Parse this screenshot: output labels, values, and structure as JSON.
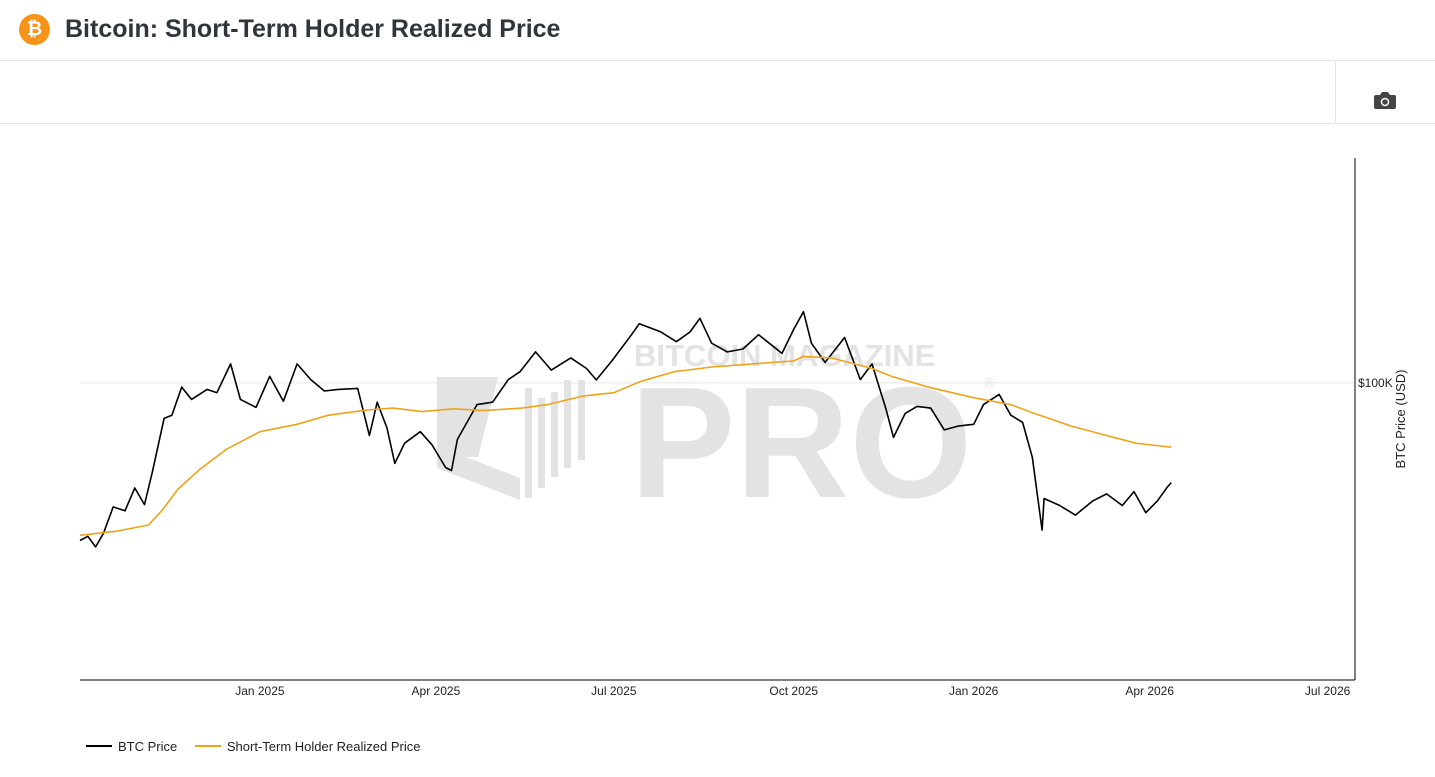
{
  "header": {
    "title": "Bitcoin: Short-Term Holder Realized Price",
    "logo_glyph": "₿"
  },
  "toolbar": {
    "camera_icon": "camera-icon"
  },
  "watermark": {
    "line1": "BITCOIN MAGAZINE",
    "line2": "PRO",
    "registered": "®"
  },
  "colors": {
    "btc_price": "#000000",
    "sth_price": "#f0a31a",
    "grid": "#e6e6e6",
    "watermark": "#e3e3e3",
    "brand": "#f7931a"
  },
  "chart_data": {
    "type": "line",
    "title": "Bitcoin: Short-Term Holder Realized Price",
    "xlabel": "",
    "ylabel": "BTC Price (USD)",
    "y_scale": "log",
    "xlim": [
      "2024-10-01",
      "2026-07-15"
    ],
    "ylim": [
      40000,
      200000
    ],
    "x_ticks": [
      "2025-01-01",
      "2025-04-01",
      "2025-07-01",
      "2025-10-01",
      "2026-01-01",
      "2026-04-01",
      "2026-07-01"
    ],
    "x_tick_labels": [
      "Jan 2025",
      "Apr 2025",
      "Jul 2025",
      "Oct 2025",
      "Jan 2026",
      "Apr 2026",
      "Jul 2026"
    ],
    "y_ticks": [
      100000
    ],
    "y_tick_labels": [
      "$100K"
    ],
    "grid": true,
    "legend_position": "bottom-left",
    "series": [
      {
        "name": "BTC Price",
        "color": "#000000",
        "points": [
          [
            "2024-10-01",
            61500
          ],
          [
            "2024-10-05",
            62300
          ],
          [
            "2024-10-09",
            60300
          ],
          [
            "2024-10-13",
            62900
          ],
          [
            "2024-10-18",
            68200
          ],
          [
            "2024-10-24",
            67400
          ],
          [
            "2024-10-29",
            72300
          ],
          [
            "2024-11-03",
            68700
          ],
          [
            "2024-11-07",
            76000
          ],
          [
            "2024-11-13",
            89600
          ],
          [
            "2024-11-17",
            90500
          ],
          [
            "2024-11-22",
            98700
          ],
          [
            "2024-11-27",
            95000
          ],
          [
            "2024-12-05",
            98000
          ],
          [
            "2024-12-10",
            97000
          ],
          [
            "2024-12-17",
            106000
          ],
          [
            "2024-12-22",
            95000
          ],
          [
            "2024-12-30",
            92700
          ],
          [
            "2025-01-06",
            102000
          ],
          [
            "2025-01-13",
            94500
          ],
          [
            "2025-01-20",
            106000
          ],
          [
            "2025-01-27",
            101000
          ],
          [
            "2025-02-03",
            97500
          ],
          [
            "2025-02-10",
            98000
          ],
          [
            "2025-02-20",
            98300
          ],
          [
            "2025-02-26",
            85000
          ],
          [
            "2025-03-02",
            94200
          ],
          [
            "2025-03-07",
            87000
          ],
          [
            "2025-03-11",
            78000
          ],
          [
            "2025-03-16",
            83000
          ],
          [
            "2025-03-24",
            86000
          ],
          [
            "2025-03-30",
            82600
          ],
          [
            "2025-04-06",
            77000
          ],
          [
            "2025-04-09",
            76300
          ],
          [
            "2025-04-12",
            84000
          ],
          [
            "2025-04-22",
            93500
          ],
          [
            "2025-04-30",
            94200
          ],
          [
            "2025-05-08",
            101000
          ],
          [
            "2025-05-14",
            103500
          ],
          [
            "2025-05-22",
            110000
          ],
          [
            "2025-05-30",
            104000
          ],
          [
            "2025-06-09",
            108000
          ],
          [
            "2025-06-17",
            104500
          ],
          [
            "2025-06-22",
            100900
          ],
          [
            "2025-06-30",
            107000
          ],
          [
            "2025-07-10",
            116000
          ],
          [
            "2025-07-14",
            120000
          ],
          [
            "2025-07-25",
            117000
          ],
          [
            "2025-08-02",
            113500
          ],
          [
            "2025-08-09",
            117000
          ],
          [
            "2025-08-14",
            122000
          ],
          [
            "2025-08-20",
            113000
          ],
          [
            "2025-08-28",
            110000
          ],
          [
            "2025-09-05",
            111000
          ],
          [
            "2025-09-13",
            116000
          ],
          [
            "2025-09-25",
            109500
          ],
          [
            "2025-10-01",
            118000
          ],
          [
            "2025-10-06",
            124500
          ],
          [
            "2025-10-10",
            113000
          ],
          [
            "2025-10-17",
            106500
          ],
          [
            "2025-10-27",
            115000
          ],
          [
            "2025-11-04",
            101000
          ],
          [
            "2025-11-10",
            106000
          ],
          [
            "2025-11-17",
            92500
          ],
          [
            "2025-11-21",
            84500
          ],
          [
            "2025-11-27",
            91000
          ],
          [
            "2025-12-03",
            93000
          ],
          [
            "2025-12-10",
            92500
          ],
          [
            "2025-12-17",
            86500
          ],
          [
            "2025-12-24",
            87500
          ],
          [
            "2026-01-01",
            88000
          ],
          [
            "2026-01-06",
            93500
          ],
          [
            "2026-01-14",
            96500
          ],
          [
            "2026-01-20",
            90500
          ],
          [
            "2026-01-26",
            88500
          ],
          [
            "2026-01-31",
            79500
          ],
          [
            "2026-02-05",
            63500
          ],
          [
            "2026-02-06",
            70000
          ],
          [
            "2026-02-14",
            68500
          ],
          [
            "2026-02-22",
            66500
          ],
          [
            "2026-03-03",
            69500
          ],
          [
            "2026-03-10",
            71000
          ],
          [
            "2026-03-18",
            68500
          ],
          [
            "2026-03-24",
            71500
          ],
          [
            "2026-03-30",
            67000
          ],
          [
            "2026-04-05",
            69500
          ],
          [
            "2026-04-10",
            72500
          ],
          [
            "2026-04-12",
            73500
          ]
        ]
      },
      {
        "name": "Short-Term Holder Realized Price",
        "color": "#f0a31a",
        "points": [
          [
            "2024-10-01",
            62500
          ],
          [
            "2024-10-20",
            63300
          ],
          [
            "2024-11-05",
            64500
          ],
          [
            "2024-11-12",
            67500
          ],
          [
            "2024-11-20",
            72000
          ],
          [
            "2024-12-01",
            76500
          ],
          [
            "2024-12-15",
            81500
          ],
          [
            "2025-01-01",
            86000
          ],
          [
            "2025-01-20",
            88000
          ],
          [
            "2025-02-05",
            90500
          ],
          [
            "2025-02-25",
            92000
          ],
          [
            "2025-03-10",
            92500
          ],
          [
            "2025-03-25",
            91500
          ],
          [
            "2025-04-10",
            92300
          ],
          [
            "2025-04-25",
            91800
          ],
          [
            "2025-05-15",
            92500
          ],
          [
            "2025-05-28",
            93500
          ],
          [
            "2025-06-15",
            96000
          ],
          [
            "2025-07-01",
            97000
          ],
          [
            "2025-07-15",
            100500
          ],
          [
            "2025-08-01",
            103500
          ],
          [
            "2025-08-20",
            105000
          ],
          [
            "2025-09-10",
            106000
          ],
          [
            "2025-10-01",
            107000
          ],
          [
            "2025-10-06",
            108500
          ],
          [
            "2025-10-20",
            108000
          ],
          [
            "2025-11-01",
            106000
          ],
          [
            "2025-11-10",
            104500
          ],
          [
            "2025-11-20",
            102000
          ],
          [
            "2025-12-10",
            98500
          ],
          [
            "2026-01-01",
            95500
          ],
          [
            "2026-01-20",
            93500
          ],
          [
            "2026-02-01",
            91000
          ],
          [
            "2026-02-20",
            87500
          ],
          [
            "2026-03-10",
            85000
          ],
          [
            "2026-03-25",
            83000
          ],
          [
            "2026-04-12",
            82000
          ]
        ]
      }
    ]
  }
}
